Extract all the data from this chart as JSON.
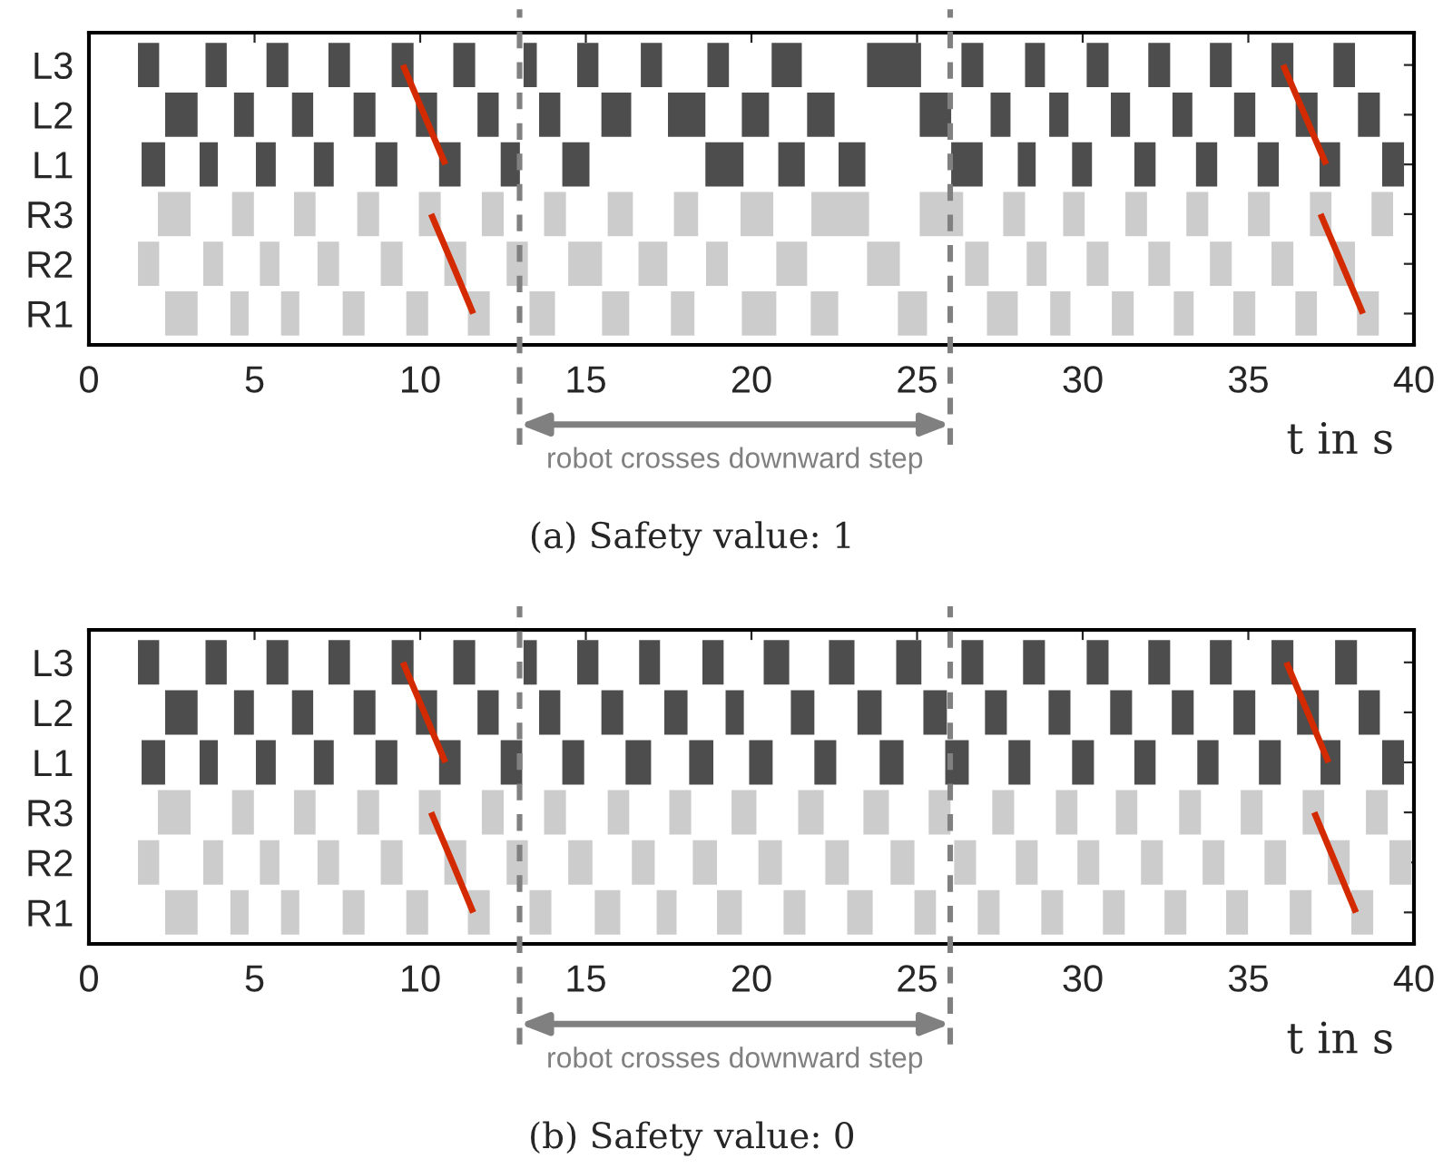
{
  "chart_data": [
    {
      "type": "bar",
      "orientation": "horizontal",
      "title": "(a) Safety value: 1",
      "xlabel": "t in s",
      "xlim": [
        0,
        40
      ],
      "xticks": [
        0,
        5,
        10,
        15,
        20,
        25,
        30,
        35,
        40
      ],
      "categories": [
        "L3",
        "L2",
        "L1",
        "R3",
        "R2",
        "R1"
      ],
      "ref_lines": [
        {
          "axis": "x",
          "value": 13,
          "line_style": "dashed",
          "color": "#808080"
        },
        {
          "axis": "x",
          "value": 26,
          "line_style": "dashed",
          "color": "#808080"
        }
      ],
      "annotations": [
        "robot crosses downward step"
      ],
      "series": [
        {
          "colors": [
            "#4d4d4d",
            "#4d4d4d",
            "#4d4d4d",
            "#cccccc",
            "#cccccc",
            "#cccccc"
          ],
          "base": [
            1.48,
            2.3,
            1.59,
            2.08,
            1.48,
            2.3
          ],
          "values": [
            0.64,
            0.98,
            0.71,
            0.99,
            0.64,
            0.98
          ]
        },
        {
          "colors": [
            "#4d4d4d",
            "#4d4d4d",
            "#4d4d4d",
            "#cccccc",
            "#cccccc",
            "#cccccc"
          ],
          "base": [
            3.52,
            4.38,
            3.34,
            4.32,
            3.45,
            4.27
          ],
          "values": [
            0.64,
            0.6,
            0.55,
            0.66,
            0.6,
            0.55
          ]
        },
        {
          "colors": [
            "#4d4d4d",
            "#4d4d4d",
            "#4d4d4d",
            "#cccccc",
            "#cccccc",
            "#cccccc"
          ],
          "base": [
            5.36,
            6.13,
            5.04,
            6.19,
            5.16,
            5.8
          ],
          "values": [
            0.66,
            0.64,
            0.6,
            0.65,
            0.59,
            0.55
          ]
        },
        {
          "colors": [
            "#4d4d4d",
            "#4d4d4d",
            "#4d4d4d",
            "#cccccc",
            "#cccccc",
            "#cccccc"
          ],
          "base": [
            7.23,
            7.99,
            6.79,
            8.1,
            6.9,
            7.66
          ],
          "values": [
            0.65,
            0.66,
            0.6,
            0.66,
            0.65,
            0.66
          ]
        },
        {
          "colors": [
            "#4d4d4d",
            "#4d4d4d",
            "#4d4d4d",
            "#cccccc",
            "#cccccc",
            "#cccccc"
          ],
          "base": [
            9.14,
            9.87,
            8.65,
            9.96,
            8.81,
            9.58
          ],
          "values": [
            0.66,
            0.64,
            0.66,
            0.66,
            0.66,
            0.66
          ]
        },
        {
          "colors": [
            "#4d4d4d",
            "#4d4d4d",
            "#4d4d4d",
            "#cccccc",
            "#cccccc",
            "#cccccc"
          ],
          "base": [
            11.0,
            11.73,
            10.57,
            11.86,
            10.73,
            11.44
          ],
          "values": [
            0.66,
            0.64,
            0.65,
            0.66,
            0.66,
            0.66
          ]
        },
        {
          "colors": [
            "#4d4d4d",
            "#4d4d4d",
            "#4d4d4d",
            "#cccccc",
            "#cccccc",
            "#cccccc"
          ],
          "base": [
            13.12,
            13.59,
            12.43,
            13.74,
            12.61,
            13.3
          ],
          "values": [
            0.4,
            0.64,
            0.58,
            0.66,
            0.64,
            0.77
          ]
        },
        {
          "colors": [
            "#4d4d4d",
            "#4d4d4d",
            "#4d4d4d",
            "#cccccc",
            "#cccccc",
            "#cccccc"
          ],
          "base": [
            14.74,
            15.47,
            14.29,
            15.66,
            14.47,
            15.49
          ],
          "values": [
            0.64,
            0.9,
            0.82,
            0.76,
            1.02,
            0.82
          ]
        },
        {
          "colors": [
            "#4d4d4d",
            "#4d4d4d",
            "#4d4d4d",
            "#cccccc",
            "#cccccc",
            "#cccccc"
          ],
          "base": [
            16.66,
            17.48,
            18.61,
            17.66,
            16.59,
            17.57
          ],
          "values": [
            0.64,
            1.13,
            1.15,
            0.73,
            0.87,
            0.71
          ]
        },
        {
          "colors": [
            "#4d4d4d",
            "#4d4d4d",
            "#4d4d4d",
            "#cccccc",
            "#cccccc",
            "#cccccc"
          ],
          "base": [
            18.67,
            19.71,
            20.81,
            19.67,
            18.63,
            19.71
          ],
          "values": [
            0.65,
            0.82,
            0.8,
            0.99,
            0.66,
            1.04
          ]
        },
        {
          "colors": [
            "#4d4d4d",
            "#4d4d4d",
            "#4d4d4d",
            "#cccccc",
            "#cccccc",
            "#cccccc"
          ],
          "base": [
            20.61,
            21.68,
            22.63,
            21.81,
            20.75,
            21.79
          ],
          "values": [
            0.91,
            0.83,
            0.81,
            1.74,
            0.93,
            0.83
          ]
        },
        {
          "colors": [
            "#4d4d4d",
            "#4d4d4d",
            "#4d4d4d",
            "#cccccc",
            "#cccccc",
            "#cccccc"
          ],
          "base": [
            23.49,
            25.08,
            26.03,
            25.08,
            23.49,
            24.42
          ],
          "values": [
            1.63,
            0.95,
            0.95,
            1.31,
            0.99,
            0.88
          ]
        },
        {
          "colors": [
            "#4d4d4d",
            "#4d4d4d",
            "#4d4d4d",
            "#cccccc",
            "#cccccc",
            "#cccccc"
          ],
          "base": [
            26.34,
            27.22,
            28.04,
            27.6,
            26.45,
            27.11
          ],
          "values": [
            0.66,
            0.6,
            0.54,
            0.66,
            0.71,
            0.93
          ]
        },
        {
          "colors": [
            "#4d4d4d",
            "#4d4d4d",
            "#4d4d4d",
            "#cccccc",
            "#cccccc",
            "#cccccc"
          ],
          "base": [
            28.26,
            28.99,
            29.68,
            29.41,
            28.31,
            29.02
          ],
          "values": [
            0.6,
            0.58,
            0.6,
            0.65,
            0.6,
            0.61
          ]
        },
        {
          "colors": [
            "#4d4d4d",
            "#4d4d4d",
            "#4d4d4d",
            "#cccccc",
            "#cccccc",
            "#cccccc"
          ],
          "base": [
            30.12,
            30.85,
            31.56,
            31.29,
            30.12,
            30.88
          ],
          "values": [
            0.66,
            0.58,
            0.64,
            0.65,
            0.66,
            0.66
          ]
        },
        {
          "colors": [
            "#4d4d4d",
            "#4d4d4d",
            "#4d4d4d",
            "#cccccc",
            "#cccccc",
            "#cccccc"
          ],
          "base": [
            31.98,
            32.71,
            33.42,
            33.13,
            31.98,
            32.75
          ],
          "values": [
            0.66,
            0.6,
            0.64,
            0.66,
            0.66,
            0.6
          ]
        },
        {
          "colors": [
            "#4d4d4d",
            "#4d4d4d",
            "#4d4d4d",
            "#cccccc",
            "#cccccc",
            "#cccccc"
          ],
          "base": [
            33.84,
            34.57,
            35.28,
            34.99,
            33.84,
            34.55
          ],
          "values": [
            0.66,
            0.64,
            0.64,
            0.66,
            0.66,
            0.66
          ]
        },
        {
          "colors": [
            "#4d4d4d",
            "#4d4d4d",
            "#4d4d4d",
            "#cccccc",
            "#cccccc",
            "#cccccc"
          ],
          "base": [
            35.7,
            36.43,
            37.15,
            36.86,
            35.7,
            36.42
          ],
          "values": [
            0.66,
            0.66,
            0.62,
            0.65,
            0.66,
            0.65
          ]
        },
        {
          "colors": [
            "#4d4d4d",
            "#4d4d4d",
            "#4d4d4d",
            "#cccccc",
            "#cccccc",
            "#cccccc"
          ],
          "base": [
            37.57,
            38.31,
            39.04,
            38.72,
            37.57,
            38.28
          ],
          "values": [
            0.65,
            0.66,
            0.66,
            0.65,
            0.65,
            0.66
          ]
        },
        {
          "type": "line",
          "color": "#d42a00",
          "values": [
            9.48,
            10.12,
            10.76,
            null,
            null,
            null
          ]
        },
        {
          "type": "line",
          "color": "#d42a00",
          "values": [
            null,
            null,
            null,
            10.33,
            10.97,
            11.6
          ]
        },
        {
          "type": "line",
          "color": "#d42a00",
          "values": [
            36.05,
            36.7,
            37.35,
            null,
            null,
            null
          ]
        },
        {
          "type": "line",
          "color": "#d42a00",
          "values": [
            null,
            null,
            null,
            37.18,
            37.82,
            38.46
          ]
        }
      ]
    },
    {
      "type": "bar",
      "orientation": "horizontal",
      "title": "(b) Safety value: 0",
      "xlabel": "t in s",
      "xlim": [
        0,
        40
      ],
      "xticks": [
        0,
        5,
        10,
        15,
        20,
        25,
        30,
        35,
        40
      ],
      "categories": [
        "L3",
        "L2",
        "L1",
        "R3",
        "R2",
        "R1"
      ],
      "ref_lines": [
        {
          "axis": "x",
          "value": 13,
          "line_style": "dashed",
          "color": "#808080"
        },
        {
          "axis": "x",
          "value": 26,
          "line_style": "dashed",
          "color": "#808080"
        }
      ],
      "annotations": [
        "robot crosses downward step"
      ],
      "series": [
        {
          "colors": [
            "#4d4d4d",
            "#4d4d4d",
            "#4d4d4d",
            "#cccccc",
            "#cccccc",
            "#cccccc"
          ],
          "base": [
            1.48,
            2.3,
            1.59,
            2.08,
            1.48,
            2.3
          ],
          "values": [
            0.64,
            0.98,
            0.71,
            0.99,
            0.64,
            0.98
          ]
        },
        {
          "colors": [
            "#4d4d4d",
            "#4d4d4d",
            "#4d4d4d",
            "#cccccc",
            "#cccccc",
            "#cccccc"
          ],
          "base": [
            3.52,
            4.38,
            3.34,
            4.32,
            3.45,
            4.27
          ],
          "values": [
            0.64,
            0.6,
            0.55,
            0.66,
            0.6,
            0.55
          ]
        },
        {
          "colors": [
            "#4d4d4d",
            "#4d4d4d",
            "#4d4d4d",
            "#cccccc",
            "#cccccc",
            "#cccccc"
          ],
          "base": [
            5.36,
            6.13,
            5.04,
            6.19,
            5.16,
            5.8
          ],
          "values": [
            0.66,
            0.64,
            0.6,
            0.65,
            0.59,
            0.55
          ]
        },
        {
          "colors": [
            "#4d4d4d",
            "#4d4d4d",
            "#4d4d4d",
            "#cccccc",
            "#cccccc",
            "#cccccc"
          ],
          "base": [
            7.23,
            7.99,
            6.79,
            8.1,
            6.9,
            7.66
          ],
          "values": [
            0.65,
            0.66,
            0.6,
            0.66,
            0.65,
            0.66
          ]
        },
        {
          "colors": [
            "#4d4d4d",
            "#4d4d4d",
            "#4d4d4d",
            "#cccccc",
            "#cccccc",
            "#cccccc"
          ],
          "base": [
            9.14,
            9.87,
            8.65,
            9.96,
            8.81,
            9.58
          ],
          "values": [
            0.66,
            0.64,
            0.66,
            0.66,
            0.66,
            0.66
          ]
        },
        {
          "colors": [
            "#4d4d4d",
            "#4d4d4d",
            "#4d4d4d",
            "#cccccc",
            "#cccccc",
            "#cccccc"
          ],
          "base": [
            11.0,
            11.73,
            10.57,
            11.86,
            10.73,
            11.44
          ],
          "values": [
            0.66,
            0.64,
            0.65,
            0.66,
            0.66,
            0.66
          ]
        },
        {
          "colors": [
            "#4d4d4d",
            "#4d4d4d",
            "#4d4d4d",
            "#cccccc",
            "#cccccc",
            "#cccccc"
          ],
          "base": [
            13.12,
            13.59,
            12.43,
            13.74,
            12.61,
            13.3
          ],
          "values": [
            0.4,
            0.64,
            0.65,
            0.66,
            0.64,
            0.66
          ]
        },
        {
          "colors": [
            "#4d4d4d",
            "#4d4d4d",
            "#4d4d4d",
            "#cccccc",
            "#cccccc",
            "#cccccc"
          ],
          "base": [
            14.74,
            15.47,
            14.29,
            15.66,
            14.47,
            15.27
          ],
          "values": [
            0.64,
            0.66,
            0.66,
            0.65,
            0.73,
            0.77
          ]
        },
        {
          "colors": [
            "#4d4d4d",
            "#4d4d4d",
            "#4d4d4d",
            "#cccccc",
            "#cccccc",
            "#cccccc"
          ],
          "base": [
            16.61,
            17.37,
            16.2,
            17.52,
            16.39,
            17.14
          ],
          "values": [
            0.63,
            0.7,
            0.77,
            0.66,
            0.69,
            0.6
          ]
        },
        {
          "colors": [
            "#4d4d4d",
            "#4d4d4d",
            "#4d4d4d",
            "#cccccc",
            "#cccccc",
            "#cccccc"
          ],
          "base": [
            18.52,
            19.22,
            18.12,
            19.4,
            18.23,
            18.96
          ],
          "values": [
            0.64,
            0.55,
            0.73,
            0.75,
            0.73,
            0.75
          ]
        },
        {
          "colors": [
            "#4d4d4d",
            "#4d4d4d",
            "#4d4d4d",
            "#cccccc",
            "#cccccc",
            "#cccccc"
          ],
          "base": [
            20.37,
            21.19,
            19.93,
            21.41,
            20.21,
            20.97
          ],
          "values": [
            0.77,
            0.71,
            0.71,
            0.77,
            0.71,
            0.66
          ]
        },
        {
          "colors": [
            "#4d4d4d",
            "#4d4d4d",
            "#4d4d4d",
            "#cccccc",
            "#cccccc",
            "#cccccc"
          ],
          "base": [
            22.34,
            23.2,
            21.9,
            23.38,
            22.23,
            22.89
          ],
          "values": [
            0.77,
            0.73,
            0.66,
            0.77,
            0.71,
            0.77
          ]
        },
        {
          "colors": [
            "#4d4d4d",
            "#4d4d4d",
            "#4d4d4d",
            "#cccccc",
            "#cccccc",
            "#cccccc"
          ],
          "base": [
            24.37,
            25.19,
            23.87,
            25.35,
            24.2,
            24.92
          ],
          "values": [
            0.76,
            0.71,
            0.72,
            0.66,
            0.72,
            0.65
          ]
        },
        {
          "colors": [
            "#4d4d4d",
            "#4d4d4d",
            "#4d4d4d",
            "#cccccc",
            "#cccccc",
            "#cccccc"
          ],
          "base": [
            26.34,
            27.05,
            25.85,
            27.27,
            26.12,
            26.83
          ],
          "values": [
            0.66,
            0.66,
            0.71,
            0.66,
            0.66,
            0.66
          ]
        },
        {
          "colors": [
            "#4d4d4d",
            "#4d4d4d",
            "#4d4d4d",
            "#cccccc",
            "#cccccc",
            "#cccccc"
          ],
          "base": [
            28.2,
            28.97,
            27.76,
            29.19,
            27.98,
            28.75
          ],
          "values": [
            0.66,
            0.66,
            0.66,
            0.65,
            0.66,
            0.66
          ]
        },
        {
          "colors": [
            "#4d4d4d",
            "#4d4d4d",
            "#4d4d4d",
            "#cccccc",
            "#cccccc",
            "#cccccc"
          ],
          "base": [
            30.12,
            30.83,
            29.68,
            31.0,
            29.84,
            30.61
          ],
          "values": [
            0.66,
            0.66,
            0.66,
            0.65,
            0.66,
            0.66
          ]
        },
        {
          "colors": [
            "#4d4d4d",
            "#4d4d4d",
            "#4d4d4d",
            "#cccccc",
            "#cccccc",
            "#cccccc"
          ],
          "base": [
            31.98,
            32.69,
            31.56,
            32.91,
            31.76,
            32.47
          ],
          "values": [
            0.66,
            0.66,
            0.64,
            0.66,
            0.66,
            0.66
          ]
        },
        {
          "colors": [
            "#4d4d4d",
            "#4d4d4d",
            "#4d4d4d",
            "#cccccc",
            "#cccccc",
            "#cccccc"
          ],
          "base": [
            33.84,
            34.55,
            33.46,
            34.77,
            33.62,
            34.33
          ],
          "values": [
            0.66,
            0.66,
            0.64,
            0.66,
            0.66,
            0.66
          ]
        },
        {
          "colors": [
            "#4d4d4d",
            "#4d4d4d",
            "#4d4d4d",
            "#cccccc",
            "#cccccc",
            "#cccccc"
          ],
          "base": [
            35.7,
            36.47,
            35.32,
            36.64,
            35.49,
            36.25
          ],
          "values": [
            0.66,
            0.66,
            0.66,
            0.65,
            0.65,
            0.66
          ]
        },
        {
          "colors": [
            "#4d4d4d",
            "#4d4d4d",
            "#4d4d4d",
            "#cccccc",
            "#cccccc",
            "#cccccc"
          ],
          "base": [
            37.62,
            38.33,
            37.18,
            38.55,
            37.4,
            38.11
          ],
          "values": [
            0.66,
            0.64,
            0.6,
            0.66,
            0.66,
            0.66
          ]
        },
        {
          "colors": [
            null,
            null,
            "#4d4d4d",
            null,
            "#cccccc",
            null
          ],
          "base": [
            null,
            null,
            39.04,
            null,
            39.26,
            null
          ],
          "values": [
            null,
            null,
            0.66,
            null,
            0.66,
            null
          ]
        },
        {
          "type": "line",
          "color": "#d42a00",
          "values": [
            9.48,
            10.12,
            10.76,
            null,
            null,
            null
          ]
        },
        {
          "type": "line",
          "color": "#d42a00",
          "values": [
            null,
            null,
            null,
            10.33,
            10.97,
            11.6
          ]
        },
        {
          "type": "line",
          "color": "#d42a00",
          "values": [
            36.15,
            36.79,
            37.42,
            null,
            null,
            null
          ]
        },
        {
          "type": "line",
          "color": "#d42a00",
          "values": [
            null,
            null,
            null,
            36.99,
            37.62,
            38.25
          ]
        }
      ]
    }
  ]
}
